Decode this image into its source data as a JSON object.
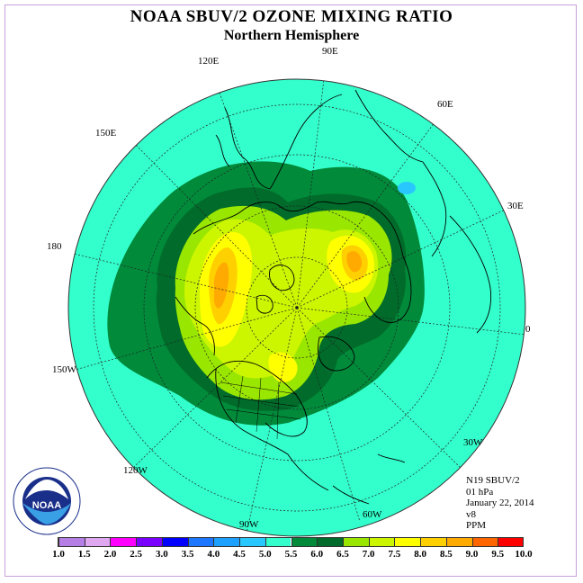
{
  "title": "NOAA SBUV/2 OZONE MIXING RATIO",
  "subtitle": "Northern Hemisphere",
  "longitude_labels": [
    "90E",
    "60E",
    "30E",
    "0",
    "30W",
    "60W",
    "90W",
    "120W",
    "150W",
    "180",
    "150E",
    "120E"
  ],
  "info": {
    "instrument": "N19 SBUV/2",
    "level": "01 hPa",
    "date": "January 22, 2014",
    "version": "v8",
    "units": "PPM"
  },
  "colorbar": {
    "ticks": [
      "1.0",
      "1.5",
      "2.0",
      "2.5",
      "3.0",
      "3.5",
      "4.0",
      "4.5",
      "5.0",
      "5.5",
      "6.0",
      "6.5",
      "7.0",
      "7.5",
      "8.0",
      "8.5",
      "9.0",
      "9.5",
      "10.0"
    ],
    "colors": [
      "#b57fe6",
      "#e0a8f0",
      "#ff00ff",
      "#7a00ff",
      "#0000ff",
      "#1e78ff",
      "#1ea0ff",
      "#28c8ff",
      "#33ffcc",
      "#008a3a",
      "#006b2a",
      "#99e600",
      "#ccf500",
      "#ffff00",
      "#ffd000",
      "#ffaa00",
      "#ff6600",
      "#ff0000",
      "#8b5a2b"
    ]
  },
  "logo": {
    "text": "NOAA",
    "ring_text": "NATIONAL OCEANIC AND ATMOSPHERIC ADMINISTRATION · U.S. DEPARTMENT OF COMMERCE"
  },
  "colors": {
    "background_field": "#33ffcc",
    "frame": "#c9a0dc"
  }
}
